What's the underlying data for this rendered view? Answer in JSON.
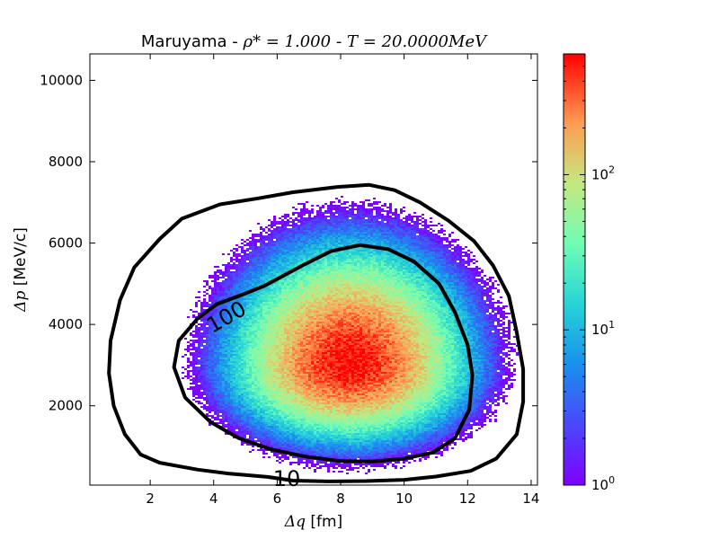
{
  "chart_data": {
    "type": "heatmap",
    "title_prefix": "Maruyama - ",
    "title_rho": "ρ* = 1.000",
    "title_sep": " - ",
    "title_T": "T = 20.0000MeV",
    "xlabel_sym": "Δq",
    "xlabel_unit": " [fm]",
    "ylabel_sym": "Δp",
    "ylabel_unit": " [MeV/c]",
    "xlim": [
      0.1,
      14.2
    ],
    "ylim": [
      50,
      10650
    ],
    "x_ticks": [
      2,
      4,
      6,
      8,
      10,
      12,
      14
    ],
    "x_tick_labels": [
      "2",
      "4",
      "6",
      "8",
      "10",
      "12",
      "14"
    ],
    "y_ticks": [
      2000,
      4000,
      6000,
      8000,
      10000
    ],
    "y_tick_labels": [
      "2000",
      "4000",
      "6000",
      "8000",
      "10000"
    ],
    "colorbar": {
      "scale": "log",
      "range": [
        1,
        600
      ],
      "ticks": [
        1,
        10,
        100
      ],
      "tick_labels": [
        {
          "base": "10",
          "exp": "0"
        },
        {
          "base": "10",
          "exp": "1"
        },
        {
          "base": "10",
          "exp": "2"
        }
      ],
      "colormap": "rainbow"
    },
    "density_peak": {
      "x": 8.3,
      "y": 3000,
      "value": 600
    },
    "contours": [
      {
        "level": 10,
        "label": "10",
        "label_at": [
          6.3,
          200
        ],
        "points": [
          [
            5.7,
            250
          ],
          [
            4.5,
            330
          ],
          [
            3.5,
            430
          ],
          [
            2.3,
            600
          ],
          [
            1.7,
            800
          ],
          [
            1.2,
            1300
          ],
          [
            0.85,
            2000
          ],
          [
            0.7,
            2800
          ],
          [
            0.75,
            3600
          ],
          [
            1.05,
            4600
          ],
          [
            1.5,
            5400
          ],
          [
            2.3,
            6100
          ],
          [
            3.0,
            6600
          ],
          [
            4.2,
            6950
          ],
          [
            5.4,
            7100
          ],
          [
            6.5,
            7250
          ],
          [
            7.9,
            7380
          ],
          [
            8.9,
            7430
          ],
          [
            9.7,
            7300
          ],
          [
            10.5,
            7000
          ],
          [
            11.4,
            6550
          ],
          [
            12.2,
            6050
          ],
          [
            12.8,
            5450
          ],
          [
            13.3,
            4700
          ],
          [
            13.55,
            3800
          ],
          [
            13.75,
            2900
          ],
          [
            13.75,
            2100
          ],
          [
            13.55,
            1300
          ],
          [
            12.9,
            700
          ],
          [
            12.1,
            400
          ],
          [
            11.0,
            260
          ],
          [
            10.0,
            180
          ],
          [
            8.8,
            150
          ],
          [
            7.6,
            140
          ],
          [
            6.5,
            160
          ],
          [
            5.7,
            250
          ]
        ]
      },
      {
        "level": 100,
        "label": "100",
        "label_at": [
          4.4,
          4180
        ],
        "points": [
          [
            4.8,
            4700
          ],
          [
            5.6,
            4950
          ],
          [
            6.8,
            5450
          ],
          [
            7.7,
            5800
          ],
          [
            8.6,
            5950
          ],
          [
            9.5,
            5850
          ],
          [
            10.3,
            5550
          ],
          [
            11.1,
            5000
          ],
          [
            11.6,
            4300
          ],
          [
            12.0,
            3500
          ],
          [
            12.15,
            2750
          ],
          [
            12.05,
            1900
          ],
          [
            11.6,
            1200
          ],
          [
            10.9,
            850
          ],
          [
            10.0,
            700
          ],
          [
            9.0,
            630
          ],
          [
            8.0,
            640
          ],
          [
            6.9,
            750
          ],
          [
            5.8,
            930
          ],
          [
            4.8,
            1200
          ],
          [
            3.9,
            1600
          ],
          [
            3.1,
            2200
          ],
          [
            2.75,
            2950
          ],
          [
            2.9,
            3600
          ],
          [
            3.5,
            4150
          ],
          [
            4.1,
            4500
          ],
          [
            4.8,
            4700
          ]
        ]
      }
    ]
  }
}
